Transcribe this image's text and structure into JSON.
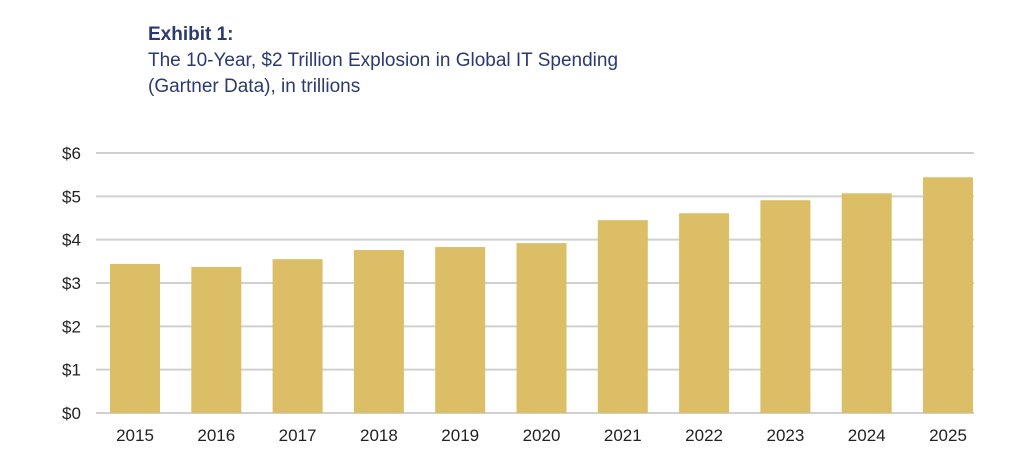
{
  "header": {
    "exhibit_label": "Exhibit 1:",
    "subtitle_line1": "The 10-Year, $2 Trillion Explosion in Global IT Spending",
    "subtitle_line2": "(Gartner Data), in trillions"
  },
  "colors": {
    "bar": "#dcbe66",
    "grid": "#d0d0d0",
    "title": "#2b3a6e"
  },
  "chart_data": {
    "type": "bar",
    "title": "Exhibit 1: The 10-Year, $2 Trillion Explosion in Global IT Spending (Gartner Data), in trillions",
    "xlabel": "",
    "ylabel": "",
    "categories": [
      "2015",
      "2016",
      "2017",
      "2018",
      "2019",
      "2020",
      "2021",
      "2022",
      "2023",
      "2024",
      "2025"
    ],
    "values": [
      3.44,
      3.37,
      3.55,
      3.76,
      3.83,
      3.92,
      4.45,
      4.61,
      4.91,
      5.07,
      5.44
    ],
    "ylim": [
      0,
      6
    ],
    "yticks": [
      0,
      1,
      2,
      3,
      4,
      5,
      6
    ],
    "ytick_labels": [
      "$0",
      "$1",
      "$2",
      "$3",
      "$4",
      "$5",
      "$6"
    ],
    "grid": true,
    "legend": "none"
  }
}
